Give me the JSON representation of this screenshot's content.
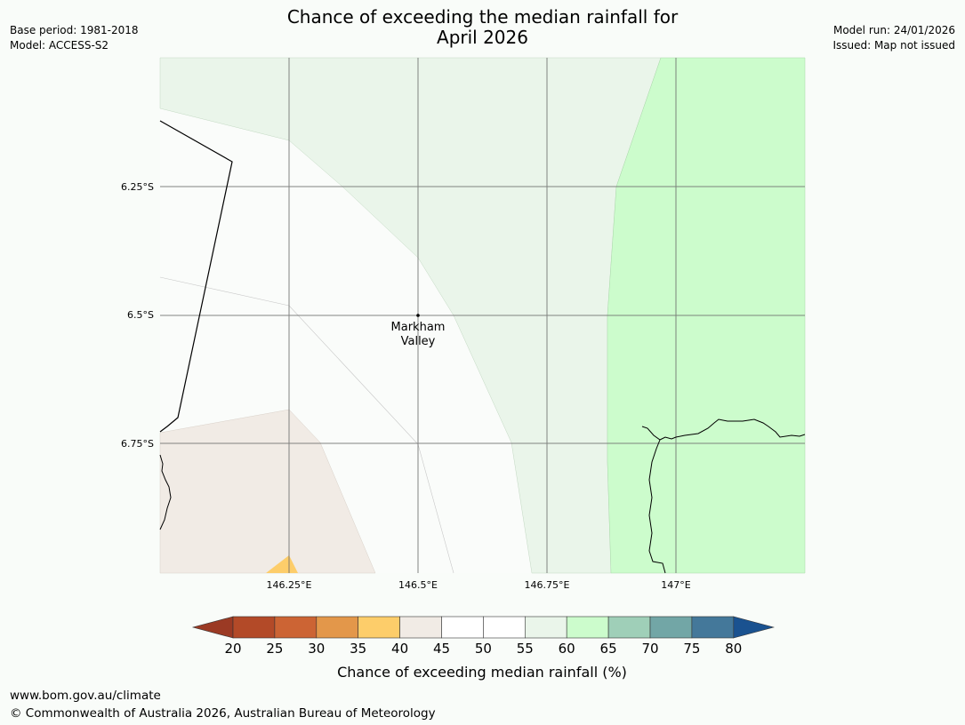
{
  "header": {
    "title_line1": "Chance of exceeding the median rainfall for",
    "title_line2": "April 2026",
    "base_period": "Base period: 1981-2018",
    "model": "Model: ACCESS-S2",
    "model_run": "Model run: 24/01/2026",
    "issued": "Issued: Map not issued"
  },
  "map": {
    "lat_labels": [
      "6.25°S",
      "6.5°S",
      "6.75°S"
    ],
    "lon_labels": [
      "146.25°E",
      "146.5°E",
      "146.75°E",
      "147°E"
    ],
    "place_label_line1": "Markham",
    "place_label_line2": "Valley"
  },
  "colorbar": {
    "ticks": [
      "20",
      "25",
      "30",
      "35",
      "40",
      "45",
      "50",
      "55",
      "60",
      "65",
      "70",
      "75",
      "80"
    ],
    "label": "Chance of exceeding median rainfall (%)",
    "under_color": "#9b3a24",
    "over_color": "#1a5290",
    "colors": [
      "#b34a28",
      "#cc6434",
      "#e3974a",
      "#fdcd6a",
      "#f1ebe5",
      "#ffffff",
      "#ffffff",
      "#eaf5ea",
      "#ccfccc",
      "#9fcfb8",
      "#72a6a6",
      "#44789a"
    ]
  },
  "footer": {
    "url": "www.bom.gov.au/climate",
    "copyright": "© Commonwealth of Australia 2026, Australian Bureau of Meteorology"
  }
}
